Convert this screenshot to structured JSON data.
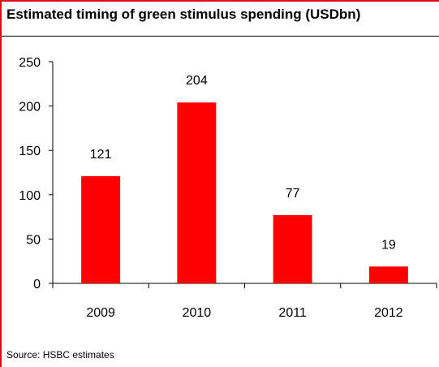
{
  "chart_data": {
    "type": "bar",
    "title": "Estimated timing of green stimulus spending (USDbn)",
    "categories": [
      "2009",
      "2010",
      "2011",
      "2012"
    ],
    "values": [
      121,
      204,
      77,
      19
    ],
    "data_labels": [
      "121",
      "204",
      "77",
      "19"
    ],
    "yticks": [
      "0",
      "50",
      "100",
      "150",
      "200",
      "250"
    ],
    "ylim": [
      0,
      250
    ],
    "xlabel": "",
    "ylabel": "",
    "grid": false,
    "legend": "none",
    "bar_color": "#ff0000",
    "source": "Source: HSBC estimates"
  },
  "colors": {
    "frame_accent": "#e30613",
    "bar": "#ff0000"
  }
}
